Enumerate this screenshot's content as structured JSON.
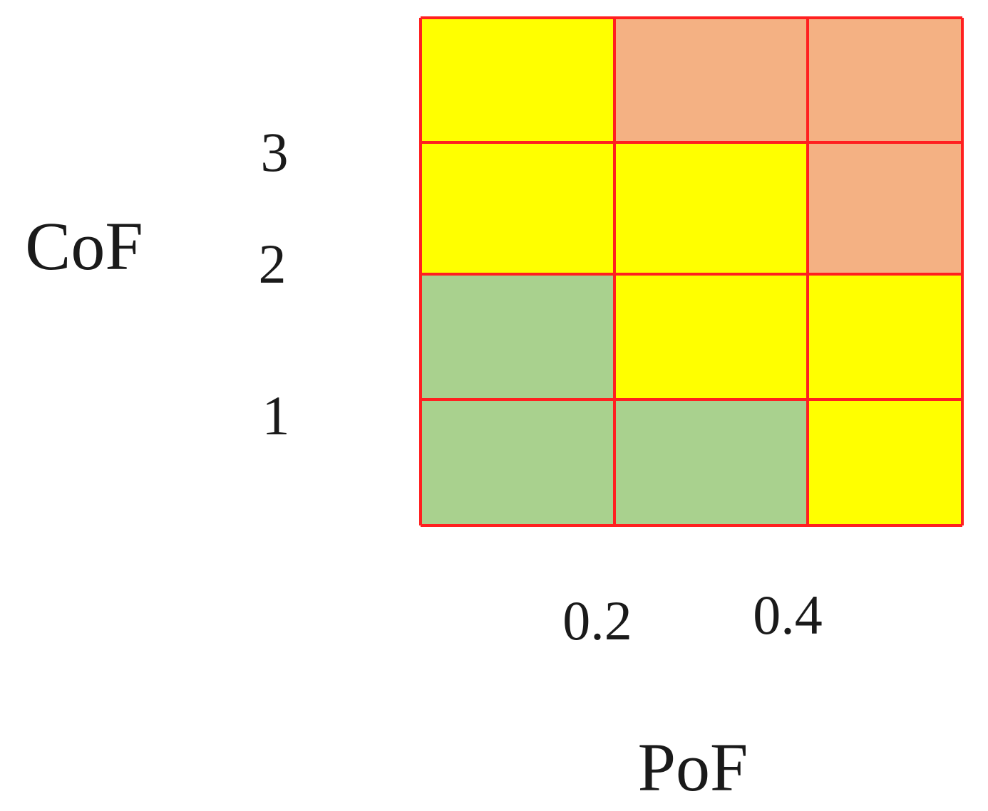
{
  "chart_data": {
    "type": "heatmap",
    "title": "",
    "xlabel": "PoF",
    "ylabel": "CoF",
    "x_tick_labels": [
      "0.2",
      "0.4"
    ],
    "y_tick_labels": [
      "3",
      "2",
      "1"
    ],
    "grid": true,
    "grid_color": "#ff2020",
    "levels": {
      "low": {
        "color": "#a9d18e"
      },
      "medium": {
        "color": "#ffff00"
      },
      "high": {
        "color": "#f4b183"
      }
    },
    "rows_top_to_bottom": [
      [
        "medium",
        "high",
        "high"
      ],
      [
        "medium",
        "medium",
        "high"
      ],
      [
        "low",
        "medium",
        "medium"
      ],
      [
        "low",
        "low",
        "medium"
      ]
    ]
  }
}
